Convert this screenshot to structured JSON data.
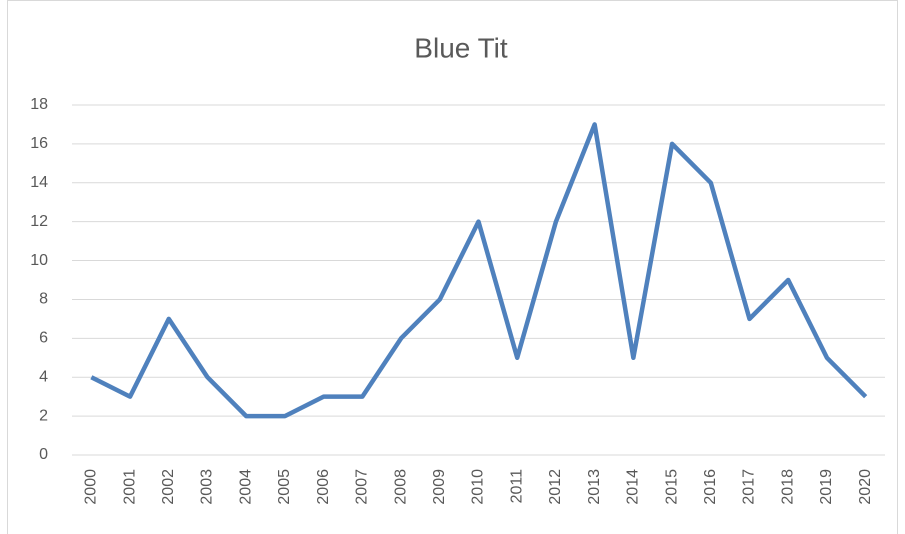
{
  "chart_data": {
    "type": "line",
    "title": "Blue Tit",
    "categories": [
      "2000",
      "2001",
      "2002",
      "2003",
      "2004",
      "2005",
      "2006",
      "2007",
      "2008",
      "2009",
      "2010",
      "2011",
      "2012",
      "2013",
      "2014",
      "2015",
      "2016",
      "2017",
      "2018",
      "2019",
      "2020"
    ],
    "series": [
      {
        "name": "Blue Tit",
        "color": "#4f81bd",
        "values": [
          4,
          3,
          7,
          4,
          2,
          2,
          3,
          3,
          6,
          8,
          12,
          5,
          12,
          17,
          5,
          16,
          14,
          7,
          9,
          5,
          3
        ]
      }
    ],
    "ylim": [
      0,
      18
    ],
    "yticks": [
      0,
      2,
      4,
      6,
      8,
      10,
      12,
      14,
      16,
      18
    ],
    "grid": true
  }
}
